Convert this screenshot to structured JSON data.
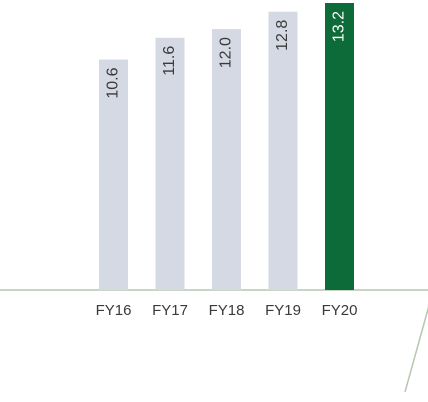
{
  "chart_data": {
    "type": "bar",
    "categories": [
      "FY16",
      "FY17",
      "FY18",
      "FY19",
      "FY20"
    ],
    "values": [
      10.6,
      11.6,
      12.0,
      12.8,
      13.2
    ],
    "value_labels": [
      "10.6",
      "11.6",
      "12.0",
      "12.8",
      "13.2"
    ],
    "colors": [
      "#d5d9e3",
      "#d5d9e3",
      "#d5d9e3",
      "#d5d9e3",
      "#0d6b3a"
    ],
    "label_colors": [
      "#3a3a3a",
      "#3a3a3a",
      "#3a3a3a",
      "#3a3a3a",
      "#ffffff"
    ]
  }
}
